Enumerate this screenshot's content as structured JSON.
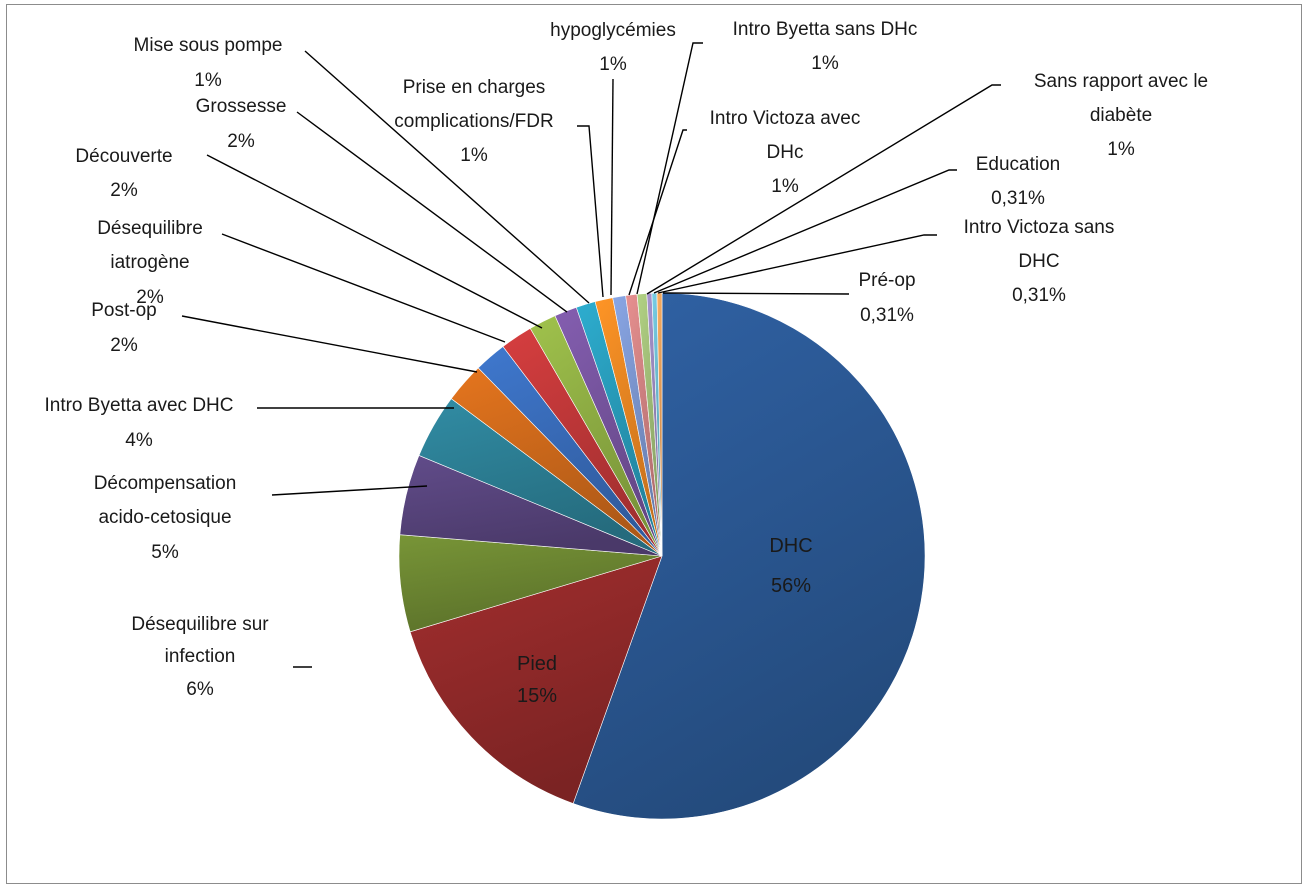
{
  "chart_data": {
    "type": "pie",
    "title": "",
    "slices": [
      {
        "label": "DHC",
        "pct_label": "56%",
        "value": 56,
        "color": "#2c5b99",
        "label_inside": true
      },
      {
        "label": "Pied",
        "pct_label": "15%",
        "value": 15,
        "color": "#962b2b",
        "label_inside": true
      },
      {
        "label": "Désequilibre sur infection",
        "pct_label": "6%",
        "value": 6,
        "color": "#6f8a33"
      },
      {
        "label": "Décompensation acido-cetosique",
        "pct_label": "5%",
        "value": 5,
        "color": "#5a4680"
      },
      {
        "label": "Intro Byetta avec DHC",
        "pct_label": "4%",
        "value": 4,
        "color": "#2d8298"
      },
      {
        "label": "Post-op",
        "pct_label": "2%",
        "value": 2.5,
        "color": "#d46c1c"
      },
      {
        "label": "Désequilibre iatrogène",
        "pct_label": "2%",
        "value": 2,
        "color": "#3a6fbf"
      },
      {
        "label": "Découverte",
        "pct_label": "2%",
        "value": 2,
        "color": "#c6393a"
      },
      {
        "label": "Grossesse",
        "pct_label": "2%",
        "value": 1.7,
        "color": "#94b446"
      },
      {
        "label": "Mise sous pompe",
        "pct_label": "1%",
        "value": 1.4,
        "color": "#7a57a3"
      },
      {
        "label": "Prise en charges complications/FDR",
        "pct_label": "1%",
        "value": 1.2,
        "color": "#2aa0c0"
      },
      {
        "label": "hypoglycémies",
        "pct_label": "1%",
        "value": 1.1,
        "color": "#f28a23"
      },
      {
        "label": "Intro Victoza avec DHc",
        "pct_label": "1%",
        "value": 0.8,
        "color": "#7f9ad4"
      },
      {
        "label": "Intro Byetta sans DHc",
        "pct_label": "1%",
        "value": 0.7,
        "color": "#d68585"
      },
      {
        "label": "Sans rapport avec le diabète",
        "pct_label": "1%",
        "value": 0.6,
        "color": "#a5c27a"
      },
      {
        "label": "Education",
        "pct_label": "0,31%",
        "value": 0.31,
        "color": "#9b8ac0"
      },
      {
        "label": "Intro Victoza sans DHC",
        "pct_label": "0,31%",
        "value": 0.31,
        "color": "#6fc0d6"
      },
      {
        "label": "Pré-op",
        "pct_label": "0,31%",
        "value": 0.31,
        "color": "#f5a55c"
      }
    ]
  }
}
